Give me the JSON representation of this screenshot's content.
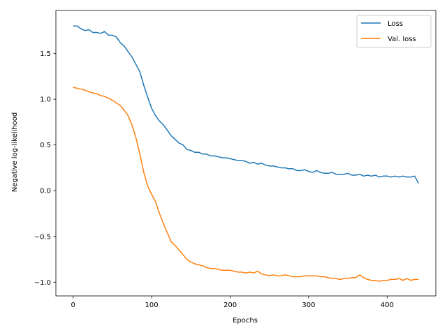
{
  "chart_data": {
    "type": "line",
    "title": "",
    "xlabel": "Epochs",
    "ylabel": "Negative log-likelihood",
    "xlim": [
      -22,
      462
    ],
    "ylim": [
      -1.15,
      1.97
    ],
    "xticks": [
      0,
      100,
      200,
      300,
      400
    ],
    "xtick_labels": [
      "0",
      "100",
      "200",
      "300",
      "400"
    ],
    "yticks": [
      -1.0,
      -0.5,
      0.0,
      0.5,
      1.0,
      1.5
    ],
    "ytick_labels": [
      "−1.0",
      "−0.5",
      "0.0",
      "0.5",
      "1.0",
      "1.5"
    ],
    "grid": false,
    "legend_position": "top-right",
    "series": [
      {
        "name": "Loss",
        "color": "#1f77b4",
        "x": [
          0,
          5,
          10,
          15,
          20,
          25,
          30,
          35,
          40,
          45,
          50,
          55,
          60,
          65,
          70,
          75,
          80,
          85,
          90,
          95,
          100,
          105,
          110,
          115,
          120,
          125,
          130,
          135,
          140,
          145,
          150,
          155,
          160,
          165,
          170,
          175,
          180,
          185,
          190,
          195,
          200,
          205,
          210,
          215,
          220,
          225,
          230,
          235,
          240,
          245,
          250,
          255,
          260,
          265,
          270,
          275,
          280,
          285,
          290,
          295,
          300,
          305,
          310,
          315,
          320,
          325,
          330,
          335,
          340,
          345,
          350,
          355,
          360,
          365,
          370,
          375,
          380,
          385,
          390,
          395,
          400,
          405,
          410,
          415,
          420,
          425,
          430,
          435,
          440
        ],
        "y": [
          1.8,
          1.8,
          1.77,
          1.75,
          1.76,
          1.73,
          1.73,
          1.72,
          1.74,
          1.7,
          1.7,
          1.68,
          1.62,
          1.58,
          1.52,
          1.46,
          1.38,
          1.3,
          1.15,
          1.02,
          0.9,
          0.82,
          0.76,
          0.72,
          0.66,
          0.6,
          0.56,
          0.52,
          0.5,
          0.45,
          0.44,
          0.42,
          0.42,
          0.4,
          0.4,
          0.38,
          0.38,
          0.37,
          0.36,
          0.36,
          0.35,
          0.34,
          0.33,
          0.33,
          0.32,
          0.3,
          0.31,
          0.29,
          0.3,
          0.28,
          0.27,
          0.27,
          0.26,
          0.25,
          0.25,
          0.24,
          0.24,
          0.22,
          0.22,
          0.23,
          0.21,
          0.2,
          0.22,
          0.2,
          0.19,
          0.19,
          0.2,
          0.18,
          0.18,
          0.18,
          0.19,
          0.17,
          0.17,
          0.18,
          0.16,
          0.17,
          0.16,
          0.17,
          0.15,
          0.16,
          0.16,
          0.15,
          0.16,
          0.15,
          0.16,
          0.15,
          0.15,
          0.16,
          0.08
        ]
      },
      {
        "name": "Val. loss",
        "color": "#ff7f0e",
        "x": [
          0,
          5,
          10,
          15,
          20,
          25,
          30,
          35,
          40,
          45,
          50,
          55,
          60,
          65,
          70,
          75,
          80,
          85,
          90,
          95,
          100,
          105,
          110,
          115,
          120,
          125,
          130,
          135,
          140,
          145,
          150,
          155,
          160,
          165,
          170,
          175,
          180,
          185,
          190,
          195,
          200,
          205,
          210,
          215,
          220,
          225,
          230,
          235,
          240,
          245,
          250,
          255,
          260,
          265,
          270,
          275,
          280,
          285,
          290,
          295,
          300,
          305,
          310,
          315,
          320,
          325,
          330,
          335,
          340,
          345,
          350,
          355,
          360,
          365,
          370,
          375,
          380,
          385,
          390,
          395,
          400,
          405,
          410,
          415,
          420,
          425,
          430,
          435,
          440
        ],
        "y": [
          1.13,
          1.12,
          1.11,
          1.1,
          1.08,
          1.07,
          1.06,
          1.04,
          1.03,
          1.01,
          0.99,
          0.96,
          0.93,
          0.88,
          0.82,
          0.72,
          0.58,
          0.4,
          0.2,
          0.05,
          -0.04,
          -0.12,
          -0.25,
          -0.36,
          -0.46,
          -0.56,
          -0.6,
          -0.65,
          -0.7,
          -0.75,
          -0.78,
          -0.8,
          -0.81,
          -0.82,
          -0.84,
          -0.85,
          -0.85,
          -0.86,
          -0.87,
          -0.87,
          -0.87,
          -0.88,
          -0.89,
          -0.89,
          -0.9,
          -0.89,
          -0.9,
          -0.88,
          -0.91,
          -0.92,
          -0.93,
          -0.92,
          -0.93,
          -0.93,
          -0.92,
          -0.93,
          -0.94,
          -0.94,
          -0.94,
          -0.93,
          -0.93,
          -0.93,
          -0.93,
          -0.94,
          -0.94,
          -0.95,
          -0.96,
          -0.96,
          -0.97,
          -0.96,
          -0.96,
          -0.95,
          -0.95,
          -0.92,
          -0.95,
          -0.97,
          -0.98,
          -0.98,
          -0.99,
          -0.98,
          -0.98,
          -0.97,
          -0.97,
          -0.96,
          -0.98,
          -0.96,
          -0.98,
          -0.97,
          -0.97
        ]
      }
    ]
  }
}
